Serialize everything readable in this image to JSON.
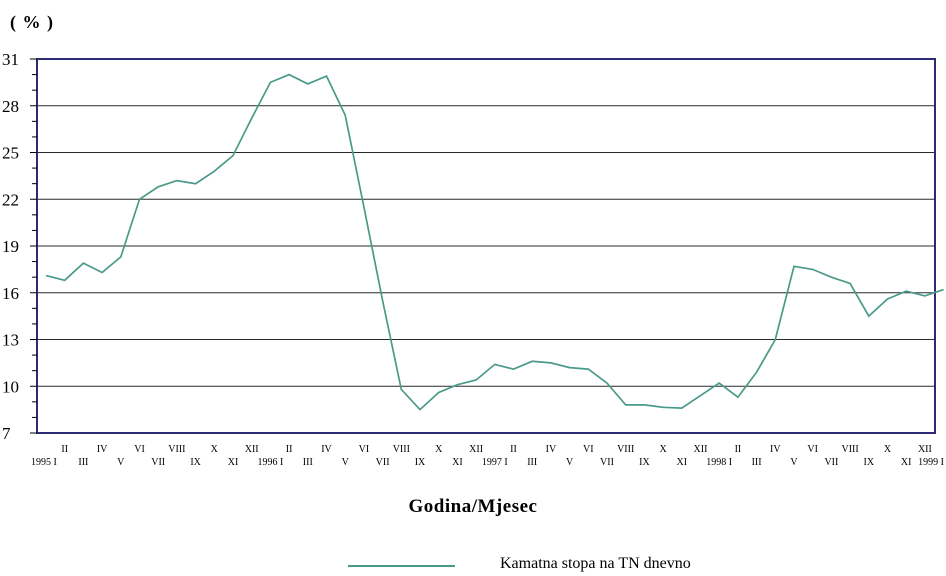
{
  "chart_data": {
    "type": "line",
    "unit_label": "( % )",
    "xlabel": "Godina/Mjesec",
    "ylim": [
      7,
      31
    ],
    "yticks": [
      7,
      10,
      13,
      16,
      19,
      22,
      25,
      28,
      31
    ],
    "grid": true,
    "legend_position": "bottom",
    "color": "#4a9a8a",
    "x_tick_labels_row1": [
      "II",
      "IV",
      "VI",
      "VIII",
      "X",
      "XII",
      "II",
      "IV",
      "VI",
      "VIII",
      "X",
      "XII",
      "II",
      "IV",
      "VI",
      "VIII",
      "X",
      "XII",
      "II",
      "IV",
      "VI",
      "VIII",
      "X",
      "XII"
    ],
    "x_tick_labels_row2": [
      "1995 I",
      "III",
      "V",
      "VII",
      "IX",
      "XI",
      "1996 I",
      "III",
      "V",
      "VII",
      "IX",
      "XI",
      "1997 I",
      "III",
      "V",
      "VII",
      "IX",
      "XI",
      "1998 I",
      "III",
      "V",
      "VII",
      "IX",
      "XI",
      "1999 I"
    ],
    "x": [
      "1995-01",
      "1995-02",
      "1995-03",
      "1995-04",
      "1995-05",
      "1995-06",
      "1995-07",
      "1995-08",
      "1995-09",
      "1995-10",
      "1995-11",
      "1995-12",
      "1996-01",
      "1996-02",
      "1996-03",
      "1996-04",
      "1996-05",
      "1996-06",
      "1996-07",
      "1996-08",
      "1996-09",
      "1996-10",
      "1996-11",
      "1996-12",
      "1997-01",
      "1997-02",
      "1997-03",
      "1997-04",
      "1997-05",
      "1997-06",
      "1997-07",
      "1997-08",
      "1997-09",
      "1997-10",
      "1997-11",
      "1997-12",
      "1998-01",
      "1998-02",
      "1998-03",
      "1998-04",
      "1998-05",
      "1998-06",
      "1998-07",
      "1998-08",
      "1998-09",
      "1998-10",
      "1998-11",
      "1998-12",
      "1999-01"
    ],
    "series": [
      {
        "name": "Kamatna stopa na TN dnevno",
        "values": [
          17.1,
          16.8,
          17.9,
          17.3,
          18.3,
          22.0,
          22.8,
          23.2,
          23.0,
          23.8,
          24.8,
          27.2,
          29.5,
          30.0,
          29.4,
          29.9,
          27.4,
          21.5,
          15.5,
          9.8,
          8.5,
          9.6,
          10.1,
          10.4,
          11.4,
          11.1,
          11.6,
          11.5,
          11.2,
          11.1,
          10.2,
          8.8,
          8.8,
          8.65,
          8.6,
          9.4,
          10.2,
          9.3,
          10.9,
          13.0,
          17.7,
          17.5,
          17.0,
          16.6,
          14.5,
          15.6,
          16.1,
          15.8,
          16.2
        ]
      }
    ]
  }
}
